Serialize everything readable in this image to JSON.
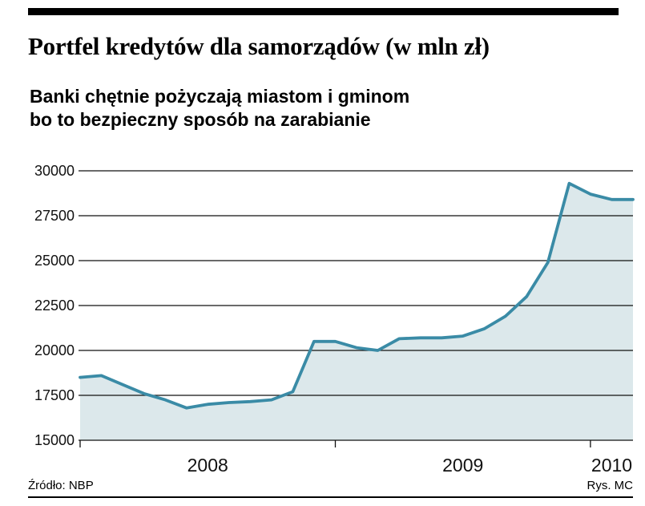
{
  "header": {
    "title": "Portfel kredytów dla samorządów (w mln zł)",
    "subtitle_line1": "Banki chętnie pożyczają miastom i gminom",
    "subtitle_line2": "bo to bezpieczny sposób na zarabianie"
  },
  "footer": {
    "source": "Źródło: NBP",
    "credit": "Rys. MC"
  },
  "chart_data": {
    "type": "area",
    "title": "Portfel kredytów dla samorządów (w mln zł)",
    "subtitle": "Banki chętnie pożyczają miastom i gminom bo to bezpieczny sposób na zarabianie",
    "unit": "mln zł",
    "x": [
      "2008-01",
      "2008-02",
      "2008-03",
      "2008-04",
      "2008-05",
      "2008-06",
      "2008-07",
      "2008-08",
      "2008-09",
      "2008-10",
      "2008-11",
      "2008-12",
      "2009-01",
      "2009-02",
      "2009-03",
      "2009-04",
      "2009-05",
      "2009-06",
      "2009-07",
      "2009-08",
      "2009-09",
      "2009-10",
      "2009-11",
      "2009-12",
      "2010-01",
      "2010-02",
      "2010-03"
    ],
    "values": [
      18500,
      18600,
      18100,
      17600,
      17250,
      16800,
      17000,
      17100,
      17150,
      17250,
      17700,
      20500,
      20500,
      20150,
      20000,
      20650,
      20700,
      20700,
      20800,
      21200,
      21900,
      23000,
      24900,
      29300,
      28700,
      28400,
      28400
    ],
    "x_tick_labels": [
      "2008",
      "2009",
      "2010"
    ],
    "x_year_starts": [
      0,
      12,
      24
    ],
    "y_ticks": [
      15000,
      17500,
      20000,
      22500,
      25000,
      27500,
      30000
    ],
    "ylim": [
      15000,
      30000
    ],
    "grid": "horizontal",
    "legend": "none",
    "xlabel": "",
    "ylabel": "",
    "line_color": "#3a8ba6",
    "fill_color": "#dce8eb",
    "source": "Źródło: NBP",
    "credit": "Rys. MC"
  }
}
